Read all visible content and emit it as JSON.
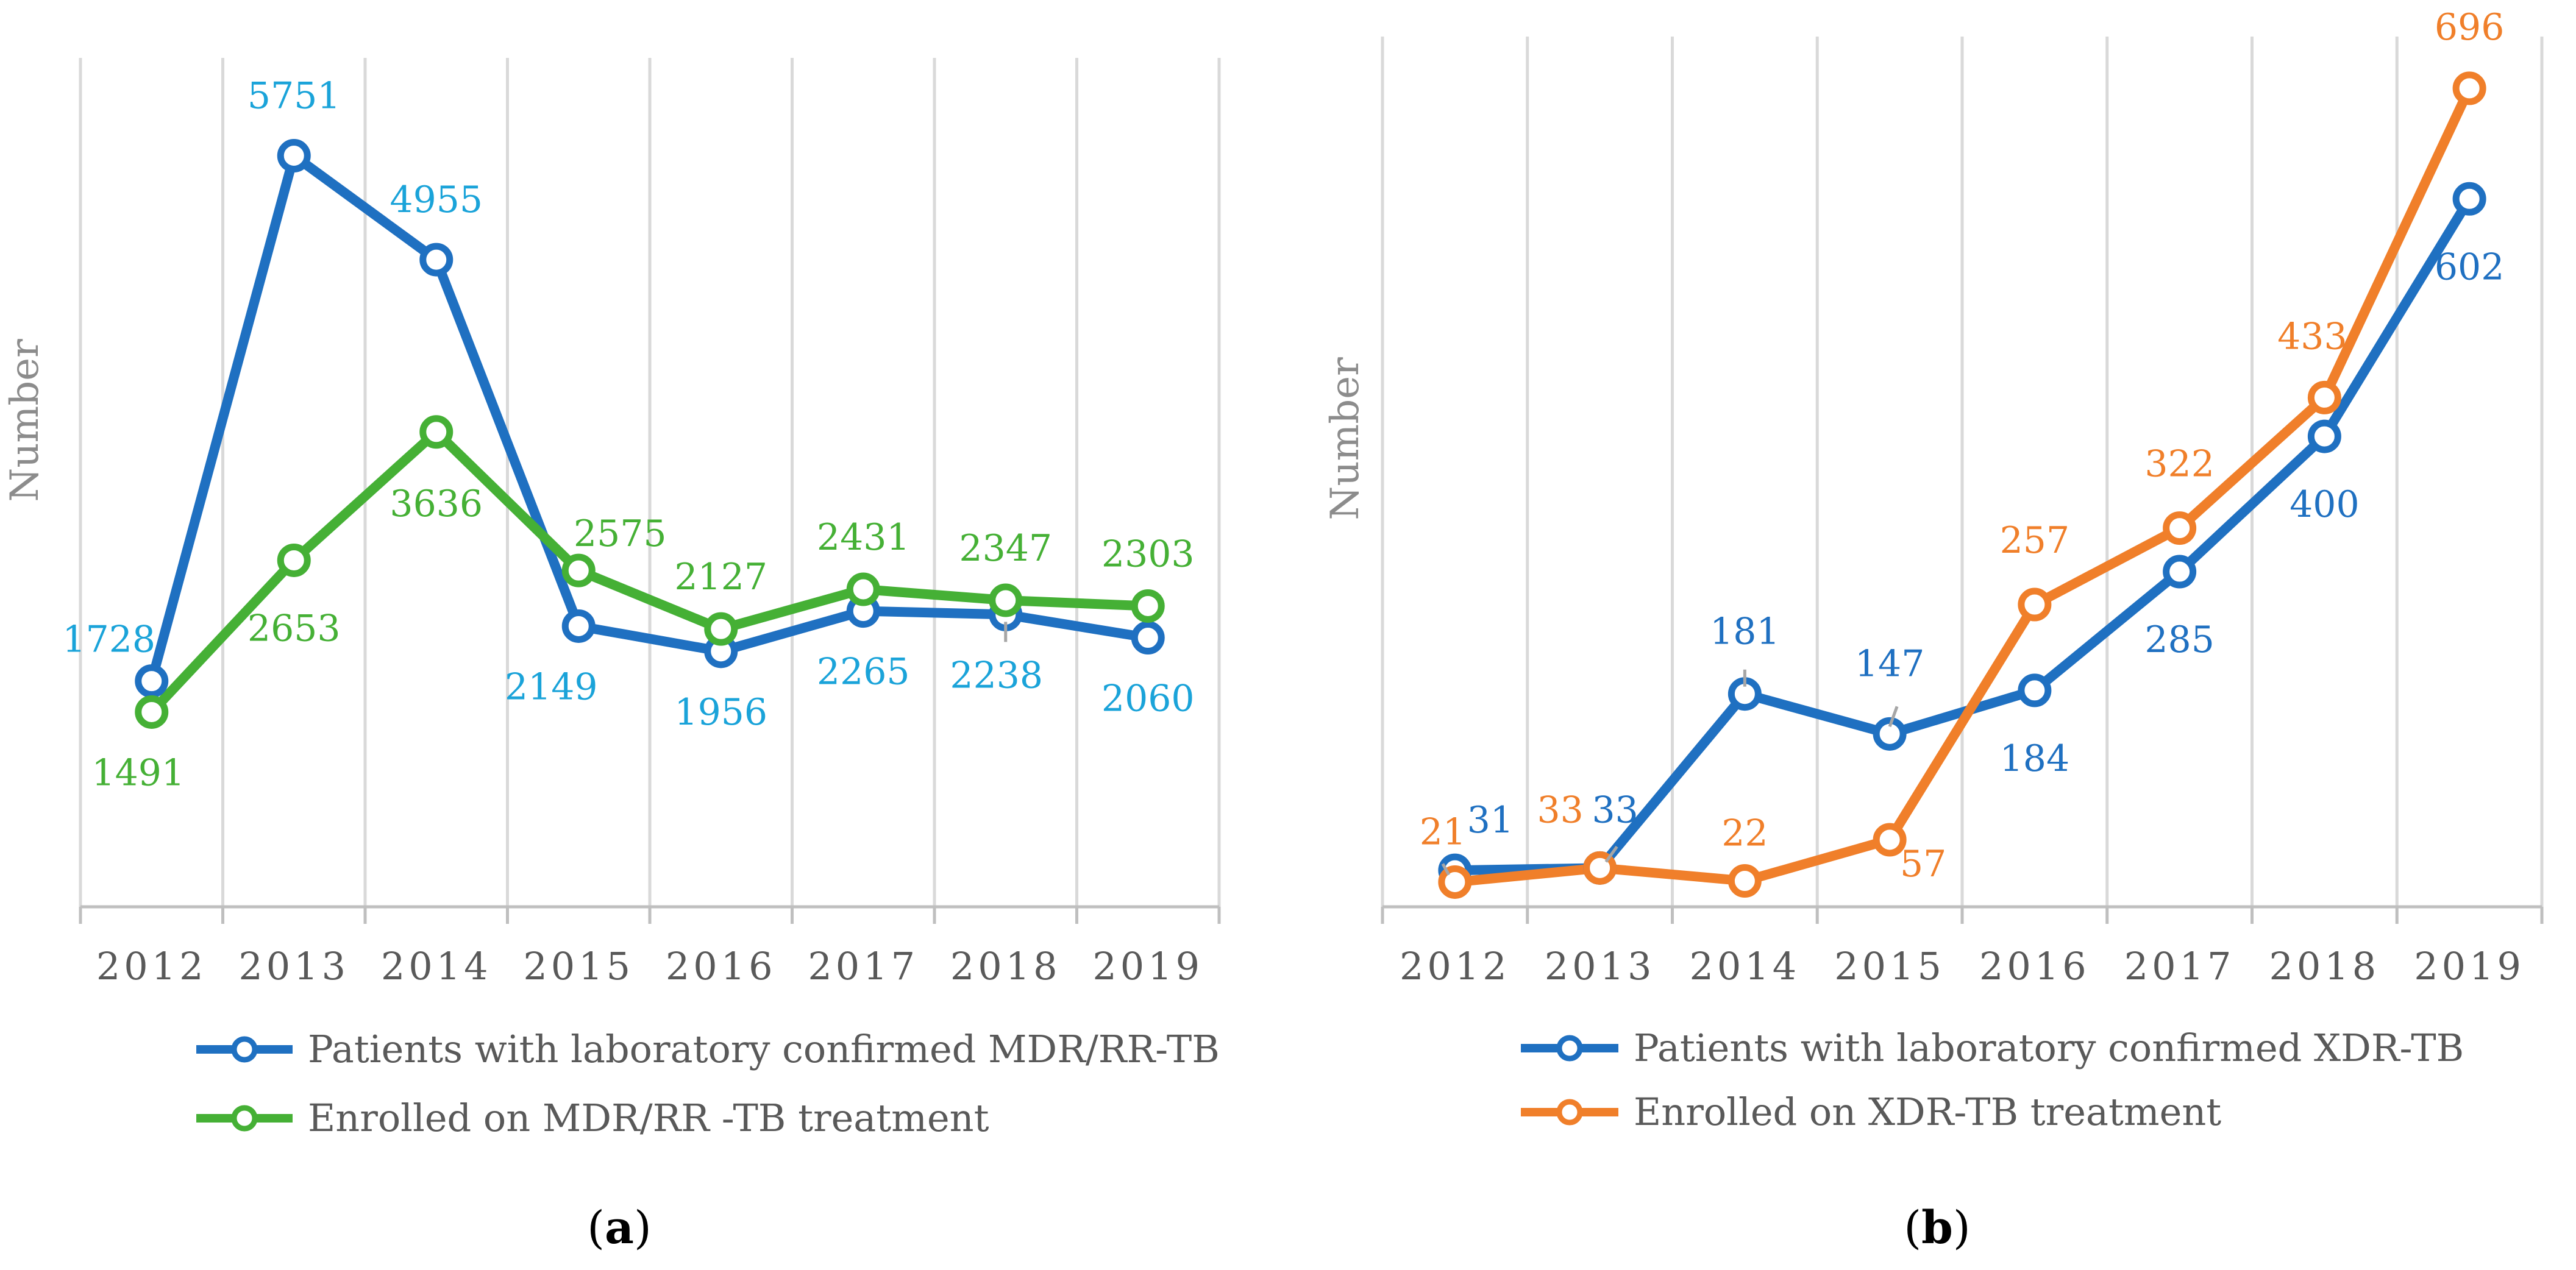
{
  "chart_data": [
    {
      "type": "line",
      "panel_label": "a",
      "title": "",
      "xlabel": "",
      "ylabel": "Number",
      "categories": [
        "2012",
        "2013",
        "2014",
        "2015",
        "2016",
        "2017",
        "2018",
        "2019"
      ],
      "ylim": [
        0,
        6500
      ],
      "grid": "vertical",
      "legend": "bottom",
      "series": [
        {
          "name": "Patients with laboratory confirmed MDR/RR-TB",
          "color": "#1f70c1",
          "label_color": "#1aa3d9",
          "values": [
            1728,
            5751,
            4955,
            2149,
            1956,
            2265,
            2238,
            2060
          ]
        },
        {
          "name": "Enrolled on MDR/RR -TB treatment",
          "color": "#45b035",
          "label_color": "#45b035",
          "values": [
            1491,
            2653,
            3636,
            2575,
            2127,
            2431,
            2347,
            2303
          ]
        }
      ]
    },
    {
      "type": "line",
      "panel_label": "b",
      "title": "",
      "xlabel": "",
      "ylabel": "Number",
      "categories": [
        "2012",
        "2013",
        "2014",
        "2015",
        "2016",
        "2017",
        "2018",
        "2019"
      ],
      "ylim": [
        0,
        740
      ],
      "grid": "vertical",
      "legend": "bottom",
      "series": [
        {
          "name": "Patients with laboratory confirmed XDR-TB",
          "color": "#1f70c1",
          "label_color": "#1f70c1",
          "values": [
            31,
            33,
            181,
            147,
            184,
            285,
            400,
            602
          ]
        },
        {
          "name": "Enrolled on XDR-TB treatment",
          "color": "#f07f2a",
          "label_color": "#f07f2a",
          "values": [
            21,
            33,
            22,
            57,
            257,
            322,
            433,
            696
          ]
        }
      ]
    }
  ]
}
